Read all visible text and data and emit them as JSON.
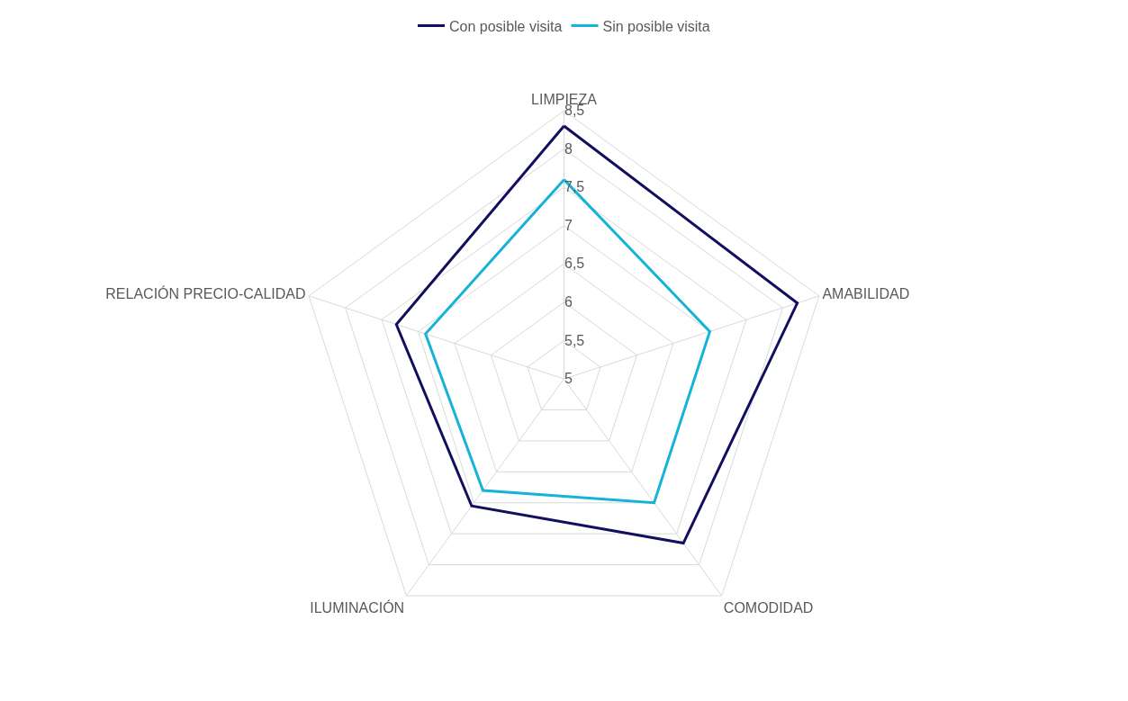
{
  "chart_data": {
    "type": "radar",
    "categories": [
      "LIMPIEZA",
      "AMABILIDAD",
      "COMODIDAD",
      "ILUMINACIÓN",
      "RELACIÓN PRECIO-CALIDAD"
    ],
    "series": [
      {
        "name": "Con posible visita",
        "color": "#110f5e",
        "values": [
          8.3,
          8.2,
          7.65,
          7.05,
          7.3
        ]
      },
      {
        "name": "Sin posible visita",
        "color": "#17b3d6",
        "values": [
          7.6,
          7.0,
          7.0,
          6.8,
          6.9
        ]
      }
    ],
    "ylim": [
      5,
      8.5
    ],
    "yticks": [
      5,
      {
        "value": 5.5,
        "label": "5,5"
      },
      6,
      {
        "value": 6.5,
        "label": "6,5"
      },
      7,
      {
        "value": 7.5,
        "label": "7,5"
      },
      8,
      {
        "value": 8.5,
        "label": "8,5"
      }
    ],
    "grid": true,
    "legend": "top",
    "marker": "none",
    "line_style": "solid"
  }
}
